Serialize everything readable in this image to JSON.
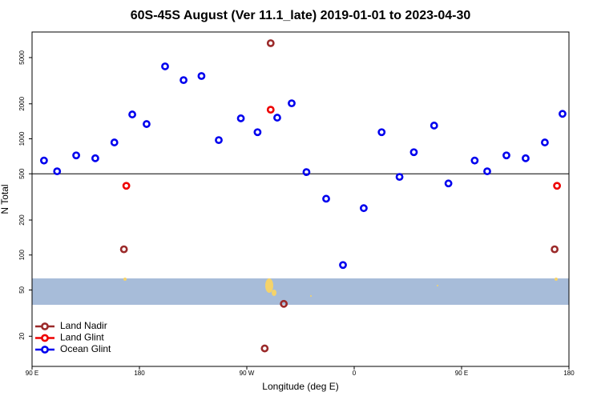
{
  "chart_data": {
    "type": "scatter",
    "title": "60S-45S August (Ver 11.1_late)   2019-01-01 to 2023-04-30",
    "xlabel": "Longitude (deg E)",
    "ylabel": "N Total",
    "xlim": [
      90,
      540
    ],
    "ylim": [
      11,
      8300
    ],
    "log_y": true,
    "xticks": [
      {
        "value": 90,
        "label": "90 E"
      },
      {
        "value": 180,
        "label": "180"
      },
      {
        "value": 270,
        "label": "90 W"
      },
      {
        "value": 360,
        "label": "0"
      },
      {
        "value": 450,
        "label": "90 E"
      },
      {
        "value": 540,
        "label": "180"
      }
    ],
    "yticks": [
      20,
      50,
      100,
      200,
      500,
      1000,
      2000,
      5000
    ],
    "hline": 500,
    "legend": "bottom-left",
    "series": [
      {
        "name": "Land Nadir",
        "color": "#9b2a2a",
        "x": [
          167,
          290,
          301,
          285,
          528
        ],
        "values": [
          112,
          6650,
          38,
          15.7,
          112
        ]
      },
      {
        "name": "Land Glint",
        "color": "#ee0000",
        "x": [
          169,
          290,
          530
        ],
        "values": [
          394,
          1780,
          394
        ]
      },
      {
        "name": "Ocean Glint",
        "color": "#0000ee",
        "x": [
          100,
          111,
          127,
          143,
          159,
          174,
          186,
          201.5,
          217,
          232,
          246.5,
          265,
          279,
          295.5,
          307.6,
          320,
          336.5,
          350.6,
          368,
          383,
          398,
          410,
          427,
          439,
          461,
          471.5,
          487.6,
          503.7,
          519.8,
          534.6
        ],
        "values": [
          650,
          525,
          720,
          680,
          930,
          1620,
          1340,
          4200,
          3200,
          3470,
          975,
          1500,
          1140,
          1520,
          2020,
          517,
          305,
          82,
          253,
          1140,
          470,
          767,
          1300,
          413,
          650,
          525,
          720,
          680,
          930,
          1640
        ]
      }
    ]
  }
}
